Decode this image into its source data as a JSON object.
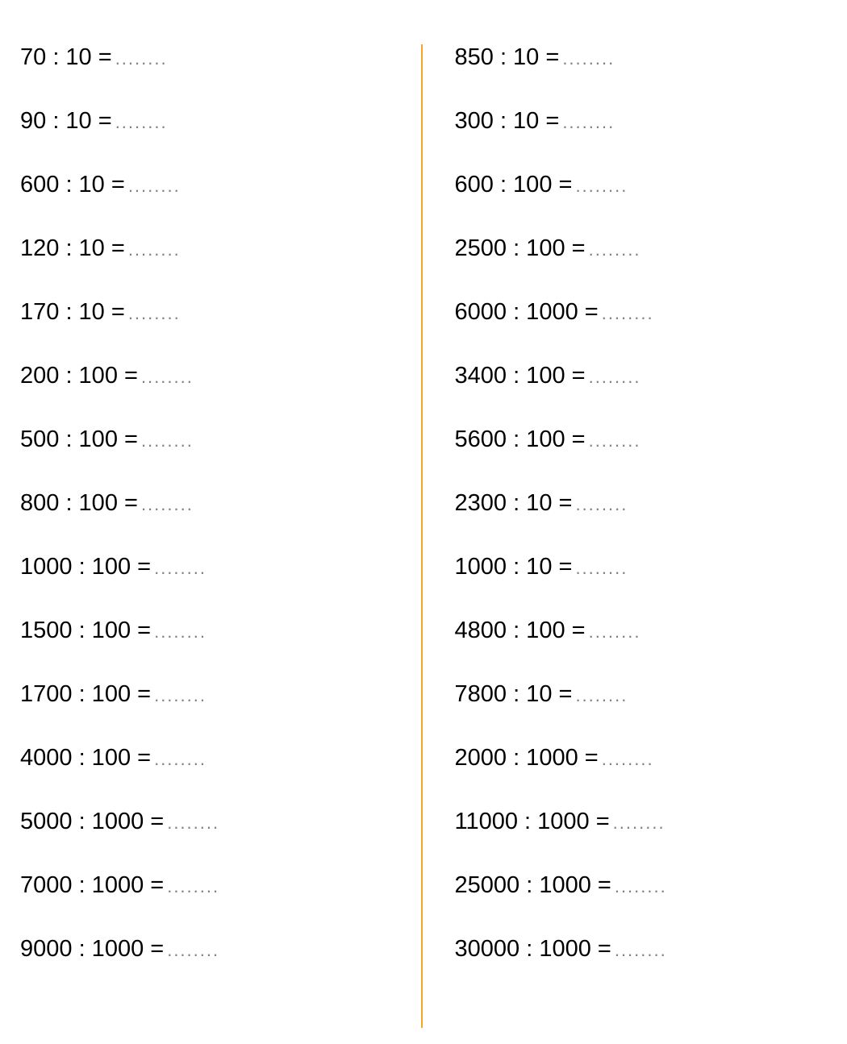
{
  "worksheet": {
    "type": "math-worksheet",
    "background_color": "#ffffff",
    "text_color": "#000000",
    "dots_color": "#808080",
    "divider_color": "#f5a623",
    "font_size": 29,
    "blank_placeholder": "........",
    "left_column": [
      {
        "dividend": 70,
        "divisor": 10,
        "expression": "70 : 10 = "
      },
      {
        "dividend": 90,
        "divisor": 10,
        "expression": "90 : 10 = "
      },
      {
        "dividend": 600,
        "divisor": 10,
        "expression": "600 : 10 = "
      },
      {
        "dividend": 120,
        "divisor": 10,
        "expression": "120 : 10 = "
      },
      {
        "dividend": 170,
        "divisor": 10,
        "expression": "170 : 10 = "
      },
      {
        "dividend": 200,
        "divisor": 100,
        "expression": "200 : 100 = "
      },
      {
        "dividend": 500,
        "divisor": 100,
        "expression": "500 : 100 = "
      },
      {
        "dividend": 800,
        "divisor": 100,
        "expression": "800 : 100 = "
      },
      {
        "dividend": 1000,
        "divisor": 100,
        "expression": "1000 : 100 = "
      },
      {
        "dividend": 1500,
        "divisor": 100,
        "expression": "1500 : 100 = "
      },
      {
        "dividend": 1700,
        "divisor": 100,
        "expression": "1700 : 100 = "
      },
      {
        "dividend": 4000,
        "divisor": 100,
        "expression": "4000 : 100 = "
      },
      {
        "dividend": 5000,
        "divisor": 1000,
        "expression": "5000 : 1000 = "
      },
      {
        "dividend": 7000,
        "divisor": 1000,
        "expression": "7000 : 1000 = "
      },
      {
        "dividend": 9000,
        "divisor": 1000,
        "expression": "9000 : 1000 = "
      }
    ],
    "right_column": [
      {
        "dividend": 850,
        "divisor": 10,
        "expression": "850 : 10 = "
      },
      {
        "dividend": 300,
        "divisor": 10,
        "expression": "300 : 10 = "
      },
      {
        "dividend": 600,
        "divisor": 100,
        "expression": "600 : 100 = "
      },
      {
        "dividend": 2500,
        "divisor": 100,
        "expression": "2500 : 100 = "
      },
      {
        "dividend": 6000,
        "divisor": 1000,
        "expression": "6000 : 1000 = "
      },
      {
        "dividend": 3400,
        "divisor": 100,
        "expression": "3400 : 100 = "
      },
      {
        "dividend": 5600,
        "divisor": 100,
        "expression": "5600 : 100 = "
      },
      {
        "dividend": 2300,
        "divisor": 10,
        "expression": "2300 : 10 = "
      },
      {
        "dividend": 1000,
        "divisor": 10,
        "expression": "1000 : 10 = "
      },
      {
        "dividend": 4800,
        "divisor": 100,
        "expression": "4800 : 100 = "
      },
      {
        "dividend": 7800,
        "divisor": 10,
        "expression": "7800 : 10 = "
      },
      {
        "dividend": 2000,
        "divisor": 1000,
        "expression": "2000 : 1000 = "
      },
      {
        "dividend": 11000,
        "divisor": 1000,
        "expression": "11000 : 1000 = "
      },
      {
        "dividend": 25000,
        "divisor": 1000,
        "expression": "25000 : 1000 = "
      },
      {
        "dividend": 30000,
        "divisor": 1000,
        "expression": "30000 : 1000 = "
      }
    ]
  }
}
